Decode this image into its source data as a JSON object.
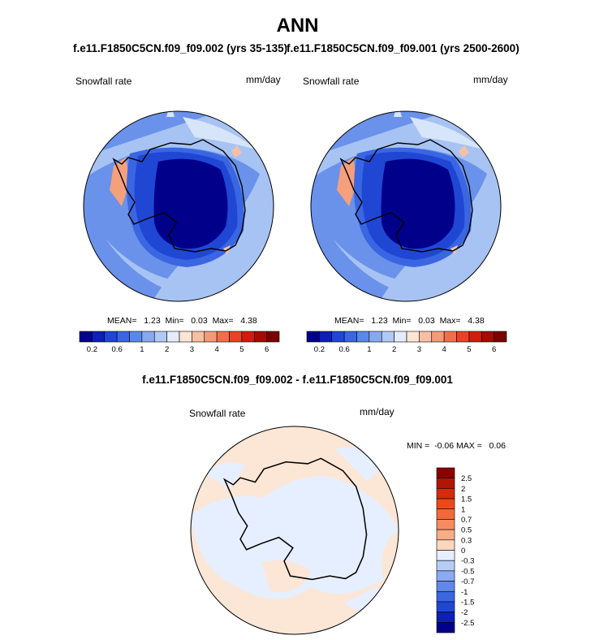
{
  "title": "ANN",
  "panels": [
    {
      "subtitle": "f.e11.F1850C5CN.f09_f09.002 (yrs 35-135)",
      "var_label": "Snowfall rate",
      "units": "mm/day",
      "stats": "MEAN=   1.23  Min=   0.03  Max=   4.38"
    },
    {
      "subtitle": "f.e11.F1850C5CN.f09_f09.001 (yrs 2500-2600)",
      "var_label": "Snowfall rate",
      "units": "mm/day",
      "stats": "MEAN=   1.23  Min=   0.03  Max=   4.38"
    }
  ],
  "diff_panel": {
    "subtitle": "f.e11.F1850C5CN.f09_f09.002 - f.e11.F1850C5CN.f09_f09.001",
    "var_label": "Snowfall rate",
    "units": "mm/day",
    "stats": "MIN =  -0.06 MAX =   0.06"
  },
  "chart_data": [
    {
      "type": "heatmap",
      "title": "f.e11.F1850C5CN.f09_f09.002 (yrs 35-135)",
      "projection": "polar-stereographic-south",
      "units": "mm/day",
      "mean": 1.23,
      "min": 0.03,
      "max": 4.38,
      "colorbar": {
        "orientation": "horizontal",
        "tick_labels": [
          "0.2",
          "0.6",
          "1",
          "2",
          "3",
          "4",
          "5",
          "6"
        ],
        "colors": [
          "#00008b",
          "#0d1fb5",
          "#1f47d4",
          "#3a66e2",
          "#5a88ea",
          "#86a9f0",
          "#b3c9f5",
          "#e2ecfb",
          "#fde4d4",
          "#f7c0a5",
          "#f49a77",
          "#ef7048",
          "#e84424",
          "#cf1e0c",
          "#a30c03",
          "#7b0000"
        ]
      }
    },
    {
      "type": "heatmap",
      "title": "f.e11.F1850C5CN.f09_f09.001 (yrs 2500-2600)",
      "projection": "polar-stereographic-south",
      "units": "mm/day",
      "mean": 1.23,
      "min": 0.03,
      "max": 4.38,
      "colorbar": {
        "orientation": "horizontal",
        "tick_labels": [
          "0.2",
          "0.6",
          "1",
          "2",
          "3",
          "4",
          "5",
          "6"
        ],
        "colors": [
          "#00008b",
          "#0d1fb5",
          "#1f47d4",
          "#3a66e2",
          "#5a88ea",
          "#86a9f0",
          "#b3c9f5",
          "#e2ecfb",
          "#fde4d4",
          "#f7c0a5",
          "#f49a77",
          "#ef7048",
          "#e84424",
          "#cf1e0c",
          "#a30c03",
          "#7b0000"
        ]
      }
    },
    {
      "type": "heatmap",
      "title": "f.e11.F1850C5CN.f09_f09.002 - f.e11.F1850C5CN.f09_f09.001",
      "projection": "polar-stereographic-south",
      "units": "mm/day",
      "min": -0.06,
      "max": 0.06,
      "colorbar": {
        "orientation": "vertical",
        "tick_labels": [
          "2.5",
          "2",
          "1.5",
          "1",
          "0.7",
          "0.5",
          "0.3",
          "0",
          "-0.3",
          "-0.5",
          "-0.7",
          "-1",
          "-1.5",
          "-2",
          "-2.5"
        ],
        "colors": [
          "#8b0000",
          "#b21504",
          "#d42b0b",
          "#ea4a1b",
          "#f26a3a",
          "#f58c5f",
          "#f8ad86",
          "#fcd6bd",
          "#e6efff",
          "#b7cdf6",
          "#8aabf0",
          "#6289ea",
          "#3a66e2",
          "#1f47d4",
          "#0d1fb5",
          "#00008b"
        ]
      }
    }
  ]
}
